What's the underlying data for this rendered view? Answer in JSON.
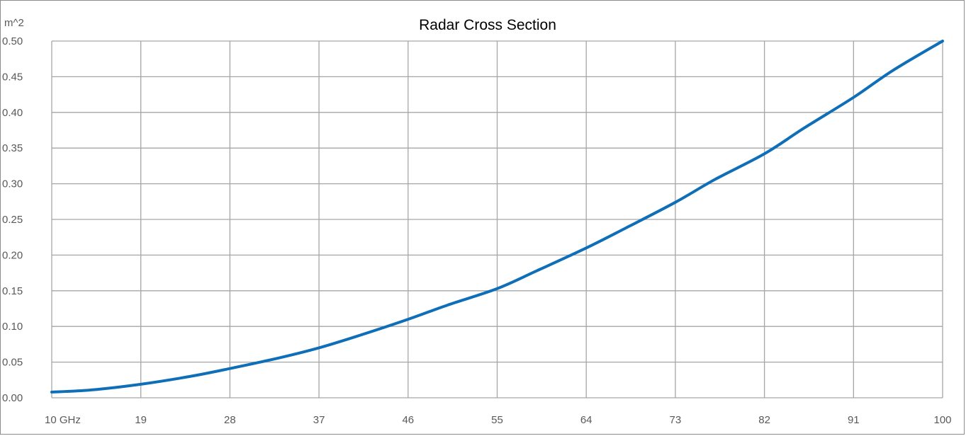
{
  "chart_data": {
    "type": "line",
    "title": "Radar Cross Section",
    "y_unit_label": "m^2",
    "xlabel": "",
    "ylabel": "",
    "x_tick_labels": [
      "10  GHz",
      "19",
      "28",
      "37",
      "46",
      "55",
      "64",
      "73",
      "82",
      "91",
      "100"
    ],
    "x_ticks": [
      10,
      19,
      28,
      37,
      46,
      55,
      64,
      73,
      82,
      91,
      100
    ],
    "y_tick_labels": [
      "0.00",
      "0.05",
      "0.10",
      "0.15",
      "0.20",
      "0.25",
      "0.30",
      "0.35",
      "0.40",
      "0.45",
      "0.50"
    ],
    "y_ticks": [
      0,
      0.05,
      0.1,
      0.15,
      0.2,
      0.25,
      0.3,
      0.35,
      0.4,
      0.45,
      0.5
    ],
    "xlim": [
      10,
      100
    ],
    "ylim": [
      0,
      0.5
    ],
    "grid": true,
    "line_color": "#0e6fb8",
    "grid_color": "#a6a6a6",
    "series": [
      {
        "x": [
          10,
          14,
          19,
          24,
          28,
          33,
          37,
          41,
          46,
          50,
          55,
          59,
          64,
          68,
          73,
          77,
          82,
          86,
          91,
          95,
          100
        ],
        "values": [
          0.008,
          0.011,
          0.019,
          0.03,
          0.041,
          0.056,
          0.07,
          0.087,
          0.11,
          0.13,
          0.153,
          0.178,
          0.21,
          0.238,
          0.274,
          0.306,
          0.342,
          0.378,
          0.421,
          0.459,
          0.5
        ]
      }
    ]
  }
}
